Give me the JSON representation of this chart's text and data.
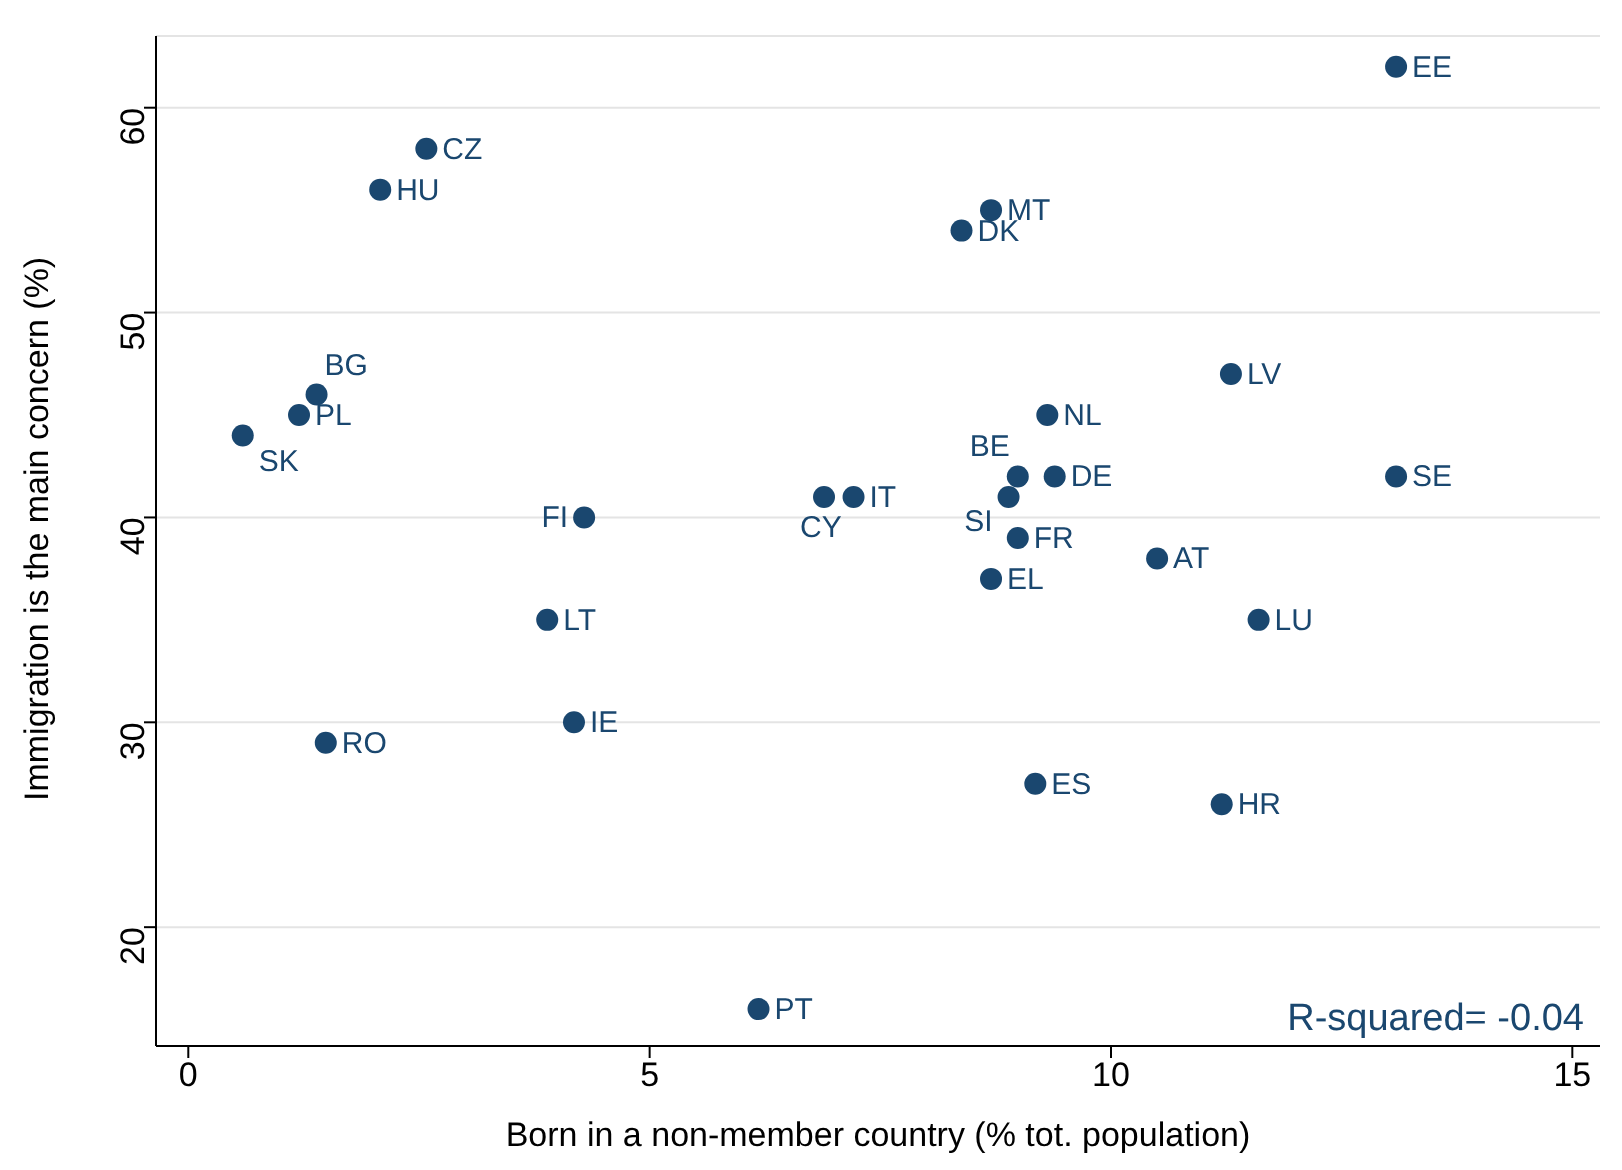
{
  "chart_data": {
    "type": "scatter",
    "xlabel": "Born in a non-member country (% tot. population)",
    "ylabel": "Immigration is the main concern (%)",
    "x": [
      13.09,
      2.58,
      2.08,
      8.7,
      8.38,
      11.3,
      1.39,
      1.2,
      9.31,
      0.59,
      8.99,
      9.39,
      13.09,
      6.89,
      7.21,
      8.89,
      4.29,
      8.99,
      10.5,
      8.7,
      3.89,
      11.6,
      4.18,
      1.49,
      9.18,
      11.2,
      6.18
    ],
    "values": [
      62,
      58,
      56,
      55,
      54,
      47,
      46,
      45,
      45,
      44,
      42,
      42,
      42,
      41,
      41,
      41,
      40,
      39,
      38,
      37,
      35,
      35,
      30,
      29,
      27,
      26,
      16
    ],
    "color": "#1a476f",
    "marker": "circle",
    "grid": "y",
    "xlim": [
      -0.35,
      15.3
    ],
    "xticks": [
      0,
      5,
      10,
      15
    ],
    "ylim": [
      14.2,
      63.5
    ],
    "yticks": [
      20,
      30,
      40,
      50,
      60
    ],
    "annotations": [
      {
        "text": "EE",
        "x": 13.09,
        "y": 62
      },
      {
        "text": "CZ",
        "x": 2.58,
        "y": 58
      },
      {
        "text": "HU",
        "x": 2.08,
        "y": 56
      },
      {
        "text": "MT",
        "x": 8.7,
        "y": 55
      },
      {
        "text": "DK",
        "x": 8.38,
        "y": 54
      },
      {
        "text": "LV",
        "x": 11.3,
        "y": 47
      },
      {
        "text": "BG",
        "x": 1.39,
        "y": 46
      },
      {
        "text": "PL",
        "x": 1.2,
        "y": 45
      },
      {
        "text": "NL",
        "x": 9.31,
        "y": 45
      },
      {
        "text": "SK",
        "x": 0.59,
        "y": 44
      },
      {
        "text": "BE",
        "x": 8.99,
        "y": 42
      },
      {
        "text": "DE",
        "x": 9.39,
        "y": 42
      },
      {
        "text": "SE",
        "x": 13.09,
        "y": 42
      },
      {
        "text": "CY",
        "x": 6.89,
        "y": 41
      },
      {
        "text": "IT",
        "x": 7.21,
        "y": 41
      },
      {
        "text": "SI",
        "x": 8.89,
        "y": 41
      },
      {
        "text": "FI",
        "x": 4.29,
        "y": 40
      },
      {
        "text": "FR",
        "x": 8.99,
        "y": 39
      },
      {
        "text": "AT",
        "x": 10.5,
        "y": 38
      },
      {
        "text": "EL",
        "x": 8.7,
        "y": 37
      },
      {
        "text": "LT",
        "x": 3.89,
        "y": 35
      },
      {
        "text": "LU",
        "x": 11.6,
        "y": 35
      },
      {
        "text": "IE",
        "x": 4.18,
        "y": 30
      },
      {
        "text": "RO",
        "x": 1.49,
        "y": 29
      },
      {
        "text": "ES",
        "x": 9.18,
        "y": 27
      },
      {
        "text": "HR",
        "x": 11.2,
        "y": 26
      },
      {
        "text": "PT",
        "x": 6.18,
        "y": 16
      },
      "R-squared= -0.04"
    ]
  }
}
